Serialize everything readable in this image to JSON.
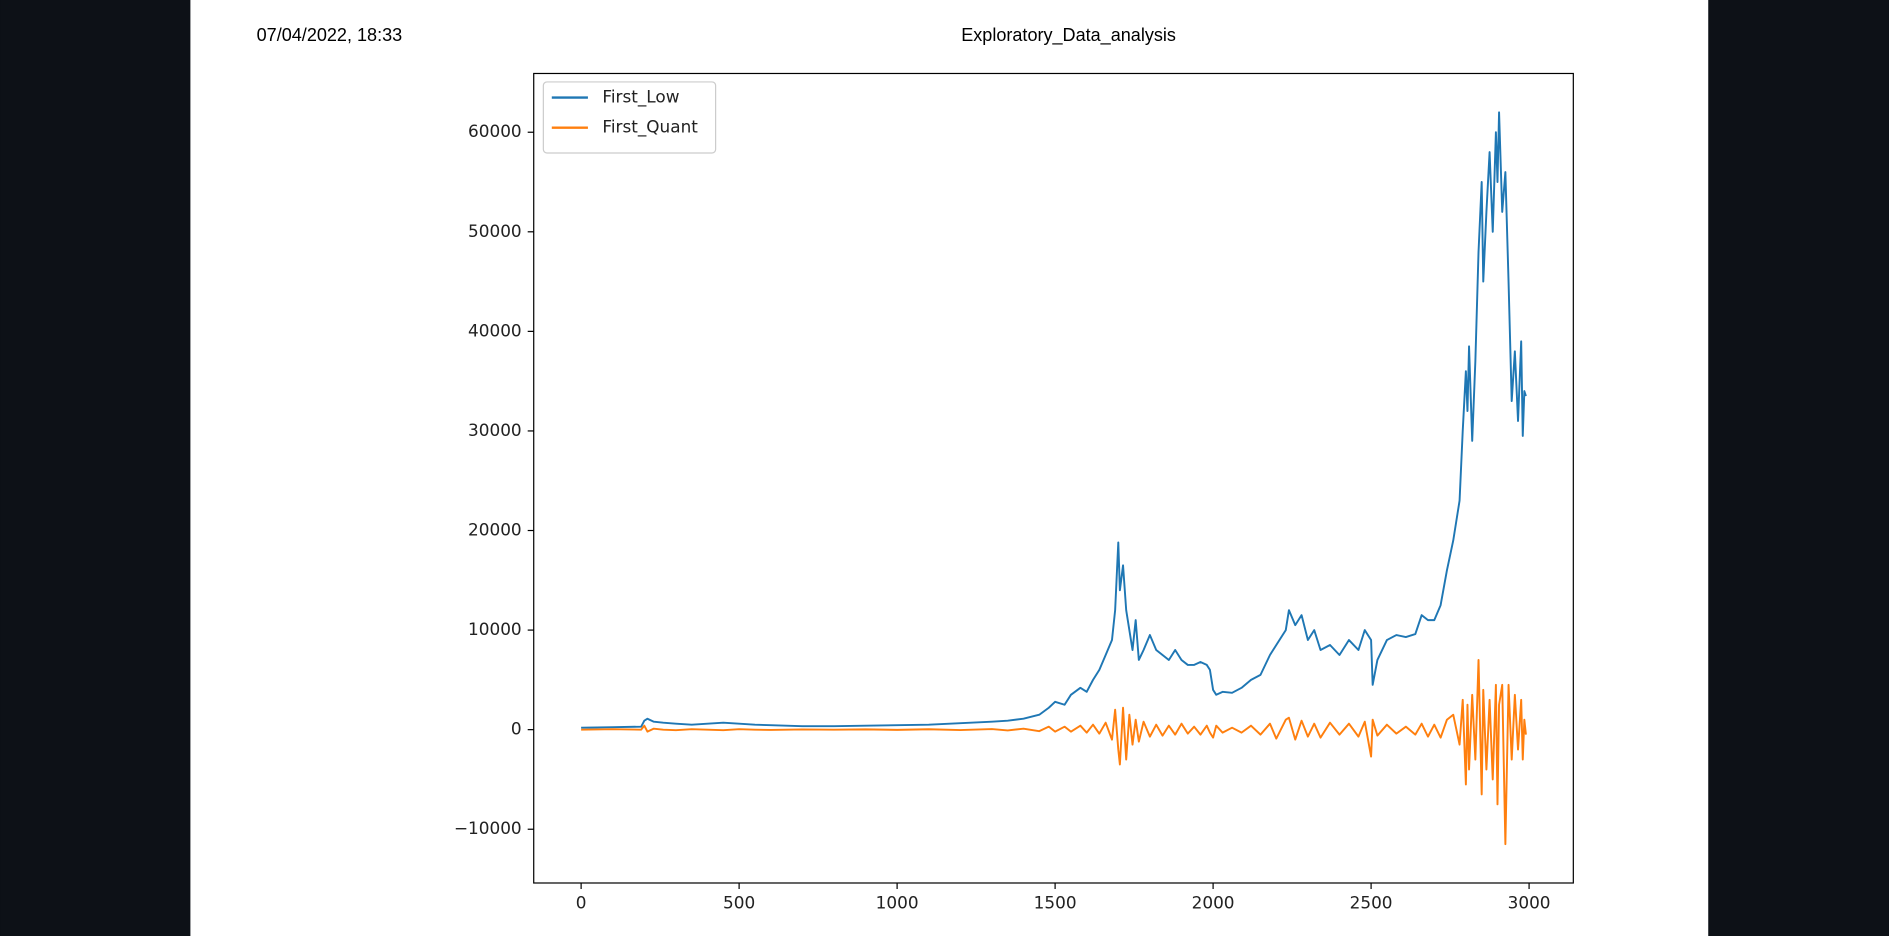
{
  "header": {
    "timestamp": "07/04/2022, 18:33",
    "title": "Exploratory_Data_analysis"
  },
  "chart_data": {
    "type": "line",
    "x": [
      0,
      100,
      190,
      200,
      210,
      230,
      260,
      300,
      350,
      400,
      450,
      500,
      550,
      600,
      700,
      800,
      900,
      1000,
      1100,
      1200,
      1300,
      1350,
      1400,
      1450,
      1480,
      1500,
      1530,
      1550,
      1580,
      1600,
      1620,
      1640,
      1660,
      1680,
      1690,
      1700,
      1705,
      1715,
      1725,
      1735,
      1745,
      1755,
      1765,
      1780,
      1800,
      1820,
      1840,
      1860,
      1880,
      1900,
      1920,
      1940,
      1960,
      1980,
      1990,
      2000,
      2010,
      2030,
      2060,
      2090,
      2120,
      2150,
      2180,
      2200,
      2230,
      2240,
      2260,
      2280,
      2300,
      2320,
      2340,
      2370,
      2400,
      2430,
      2460,
      2480,
      2500,
      2505,
      2520,
      2550,
      2580,
      2610,
      2640,
      2660,
      2680,
      2700,
      2720,
      2740,
      2760,
      2780,
      2790,
      2800,
      2805,
      2810,
      2820,
      2830,
      2840,
      2850,
      2855,
      2865,
      2875,
      2885,
      2895,
      2900,
      2905,
      2915,
      2925,
      2935,
      2945,
      2955,
      2965,
      2975,
      2980,
      2985,
      2990
    ],
    "series": [
      {
        "name": "First_Low",
        "color": "#1f77b4",
        "values": [
          200,
          250,
          300,
          900,
          1100,
          800,
          700,
          600,
          500,
          600,
          700,
          600,
          500,
          450,
          350,
          350,
          400,
          450,
          500,
          650,
          800,
          900,
          1100,
          1500,
          2200,
          2800,
          2500,
          3500,
          4200,
          3800,
          5000,
          6000,
          7500,
          9000,
          12000,
          18800,
          14000,
          16500,
          12000,
          10000,
          8000,
          11000,
          7000,
          8000,
          9500,
          8000,
          7500,
          7000,
          8000,
          7000,
          6500,
          6500,
          6800,
          6500,
          6000,
          4000,
          3500,
          3800,
          3700,
          4200,
          5000,
          5500,
          7500,
          8500,
          10000,
          12000,
          10500,
          11500,
          9000,
          10000,
          8000,
          8500,
          7500,
          9000,
          8000,
          10000,
          9000,
          4500,
          7000,
          9000,
          9500,
          9300,
          9600,
          11500,
          11000,
          11000,
          12500,
          16000,
          19000,
          23000,
          30000,
          36000,
          32000,
          38500,
          29000,
          37000,
          48000,
          55000,
          45000,
          52000,
          58000,
          50000,
          60000,
          55000,
          62000,
          52000,
          56000,
          45000,
          33000,
          38000,
          31000,
          39000,
          29500,
          34000,
          33500
        ]
      },
      {
        "name": "First_Quant",
        "color": "#ff7f0e",
        "values": [
          0,
          50,
          0,
          400,
          -200,
          100,
          0,
          -50,
          50,
          0,
          -50,
          50,
          0,
          -30,
          20,
          0,
          30,
          -20,
          40,
          -40,
          60,
          -80,
          100,
          -150,
          300,
          -200,
          300,
          -200,
          400,
          -300,
          500,
          -400,
          700,
          -1000,
          2000,
          -2000,
          -3500,
          2200,
          -3000,
          1500,
          -1500,
          1000,
          -1200,
          800,
          -700,
          500,
          -600,
          400,
          -500,
          600,
          -400,
          300,
          -500,
          400,
          -300,
          -800,
          400,
          -300,
          200,
          -300,
          400,
          -500,
          600,
          -900,
          1000,
          1200,
          -1000,
          900,
          -700,
          600,
          -800,
          700,
          -500,
          600,
          -700,
          800,
          -2700,
          1000,
          -600,
          500,
          -400,
          300,
          -500,
          600,
          -700,
          500,
          -800,
          1000,
          1500,
          -1500,
          3000,
          -5500,
          2500,
          -4000,
          3500,
          -3000,
          7000,
          -6500,
          4000,
          -4000,
          3000,
          -5000,
          4500,
          -7500,
          2500,
          4500,
          -11500,
          4500,
          -3000,
          3500,
          -2000,
          3000,
          -3000,
          1000,
          -500
        ]
      }
    ],
    "xlim": [
      -150,
      3140
    ],
    "ylim": [
      -15400,
      65900
    ],
    "xticks": [
      0,
      500,
      1000,
      1500,
      2000,
      2500,
      3000
    ],
    "yticks": [
      {
        "value": -10000,
        "label": "−10000"
      },
      0,
      10000,
      20000,
      30000,
      40000,
      50000,
      60000
    ],
    "legend": "upper left",
    "grid": false
  }
}
